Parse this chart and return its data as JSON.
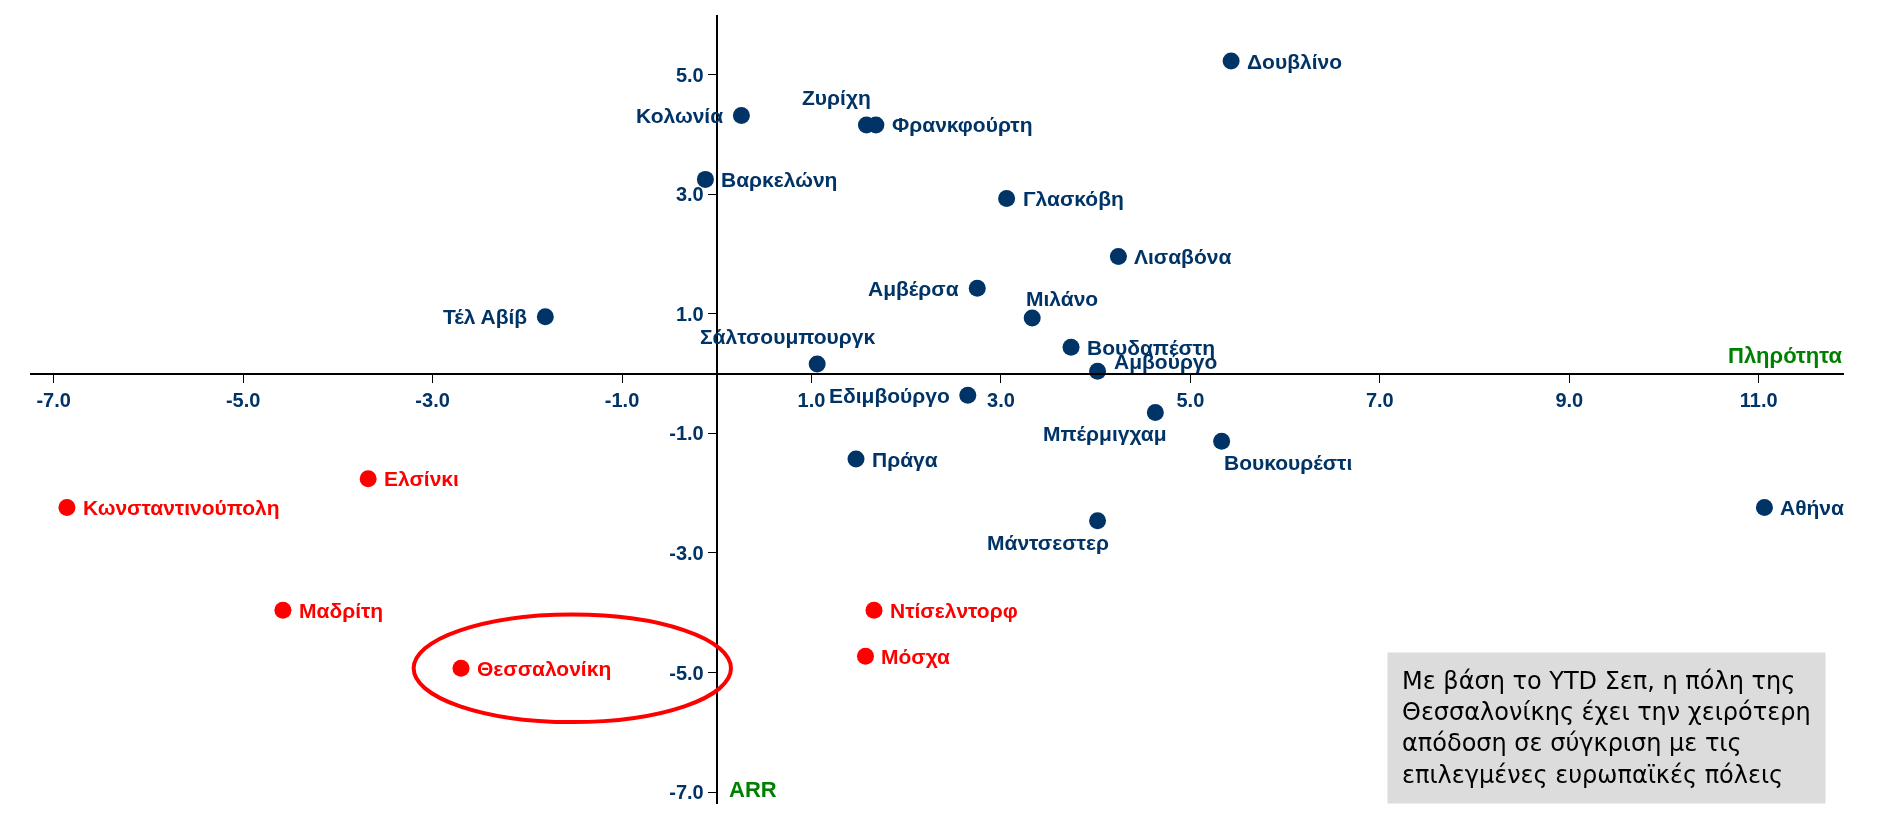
{
  "chart_data": {
    "type": "scatter",
    "xlabel": "Πληρότητα",
    "ylabel": "ARR",
    "marker": "circle",
    "xlim": [
      -7.25,
      11.9
    ],
    "ylim": [
      -7.2,
      6.0
    ],
    "xticks": [
      {
        "value": -7,
        "label": "-7.0"
      },
      {
        "value": -5,
        "label": "-5.0"
      },
      {
        "value": -3,
        "label": "-3.0"
      },
      {
        "value": -1,
        "label": "-1.0"
      },
      {
        "value": 1,
        "label": "1.0"
      },
      {
        "value": 3,
        "label": "3.0"
      },
      {
        "value": 5,
        "label": "5.0"
      },
      {
        "value": 7,
        "label": "7.0"
      },
      {
        "value": 9,
        "label": "9.0"
      },
      {
        "value": 11,
        "label": "11.0"
      }
    ],
    "yticks": [
      {
        "value": -7,
        "label": "-7.0"
      },
      {
        "value": -5,
        "label": "-5.0"
      },
      {
        "value": -3,
        "label": "-3.0"
      },
      {
        "value": -1,
        "label": "-1.0"
      },
      {
        "value": 1,
        "label": "1.0"
      },
      {
        "value": 3,
        "label": "3.0"
      },
      {
        "value": 5,
        "label": "5.0"
      }
    ],
    "series": [
      {
        "color": "#003366",
        "x": [
          5.43,
          0.26,
          1.58,
          1.68,
          -0.12,
          3.06,
          4.24,
          2.75,
          3.33,
          -1.81,
          3.74,
          1.06,
          4.02,
          2.65,
          4.63,
          5.33,
          1.47,
          11.06,
          4.02
        ],
        "values": [
          5.23,
          4.32,
          4.16,
          4.16,
          3.25,
          2.93,
          1.96,
          1.43,
          0.93,
          0.95,
          0.44,
          0.16,
          0.04,
          -0.36,
          -0.65,
          -1.13,
          -1.43,
          -2.24,
          -2.46
        ]
      },
      {
        "color": "#ff0000",
        "x": [
          -3.68,
          -6.86,
          -4.58,
          -2.7,
          1.66,
          1.57
        ],
        "values": [
          -1.76,
          -2.24,
          -3.96,
          -4.93,
          -3.96,
          -4.73
        ]
      }
    ],
    "annotations": [
      {
        "text": "Δουβλίνο",
        "x": 5.43,
        "y": 5.23
      },
      {
        "text": "Κολωνία",
        "x": 0.26,
        "y": 4.32
      },
      {
        "text": "Ζυρίχη",
        "x": 1.58,
        "y": 4.16
      },
      {
        "text": "Φρανκφούρτη",
        "x": 1.68,
        "y": 4.16
      },
      {
        "text": "Βαρκελώνη",
        "x": -0.12,
        "y": 3.25
      },
      {
        "text": "Γλασκόβη",
        "x": 3.06,
        "y": 2.93
      },
      {
        "text": "Λισαβόνα",
        "x": 4.24,
        "y": 1.96
      },
      {
        "text": "Αμβέρσα",
        "x": 2.75,
        "y": 1.43
      },
      {
        "text": "Μιλάνο",
        "x": 3.33,
        "y": 0.93
      },
      {
        "text": "Τέλ Αβίβ",
        "x": -1.81,
        "y": 0.95
      },
      {
        "text": "Βουδαπέστη",
        "x": 3.74,
        "y": 0.44
      },
      {
        "text": "Σάλτσουμπουργκ",
        "x": 1.06,
        "y": 0.16
      },
      {
        "text": "Αμβούργο",
        "x": 4.02,
        "y": 0.04
      },
      {
        "text": "Εδιμβούργο",
        "x": 2.65,
        "y": -0.36
      },
      {
        "text": "Μπέρμιγχαμ",
        "x": 4.63,
        "y": -0.65
      },
      {
        "text": "Βουκουρέστι",
        "x": 5.33,
        "y": -1.13
      },
      {
        "text": "Πράγα",
        "x": 1.47,
        "y": -1.43
      },
      {
        "text": "Αθήνα",
        "x": 11.06,
        "y": -2.24
      },
      {
        "text": "Μάντσεστερ",
        "x": 4.02,
        "y": -2.46
      },
      {
        "text": "Ελσίνκι",
        "x": -3.68,
        "y": -1.76
      },
      {
        "text": "Κωνσταντινούπολη",
        "x": -6.86,
        "y": -2.24
      },
      {
        "text": "Μαδρίτη",
        "x": -4.58,
        "y": -3.96
      },
      {
        "text": "Θεσσαλονίκη",
        "x": -2.7,
        "y": -4.93
      },
      {
        "text": "Ντίσελντορφ",
        "x": 1.66,
        "y": -3.96
      },
      {
        "text": "Μόσχα",
        "x": 1.57,
        "y": -4.73
      },
      "Με βάση το YTD Σεπ, η πόλη της Θεσσαλονίκης έχει την χειρότερη απόδοση σε σύγκριση με τις επιλεγμένες ευρωπαϊκές πόλεις"
    ]
  }
}
